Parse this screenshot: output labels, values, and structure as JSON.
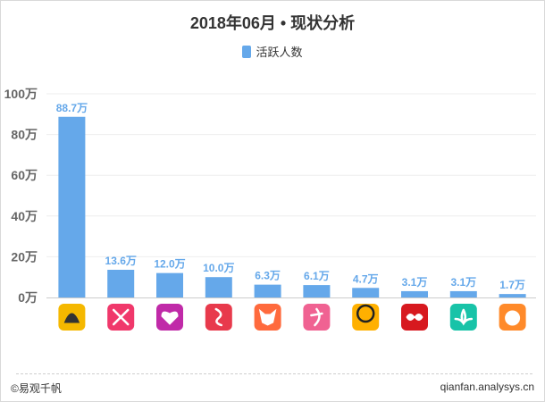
{
  "chart_data": {
    "type": "bar",
    "title": "2018年06月 • 现状分析",
    "categories": [
      "app-1",
      "app-2",
      "app-3",
      "app-4",
      "app-5",
      "app-6",
      "app-7",
      "app-8",
      "app-9",
      "app-10"
    ],
    "series": [
      {
        "name": "活跃人数",
        "color": "#65a8ea",
        "values": [
          88.7,
          13.6,
          12.0,
          10.0,
          6.3,
          6.1,
          4.7,
          3.1,
          3.1,
          1.7
        ]
      }
    ],
    "data_labels": [
      "88.7万",
      "13.6万",
      "12.0万",
      "10.0万",
      "6.3万",
      "6.1万",
      "4.7万",
      "3.1万",
      "3.1万",
      "1.7万"
    ],
    "ylim": [
      0,
      100
    ],
    "yticks": [
      0,
      20,
      40,
      60,
      80,
      100
    ],
    "ytick_labels": [
      "0万",
      "20万",
      "40万",
      "60万",
      "80万",
      "100万"
    ],
    "legend_position": "top-center",
    "grid": true
  },
  "app_icons": [
    {
      "name": "banana-icon",
      "bg": "#f5b800",
      "fg": "#333333"
    },
    {
      "name": "crossed-tools-icon",
      "bg": "#f0386b",
      "fg": "#ffffff"
    },
    {
      "name": "heart-icon",
      "bg": "#c02aa8",
      "fg": "#ffffff"
    },
    {
      "name": "figure-icon",
      "bg": "#e83a4c",
      "fg": "#ffffff"
    },
    {
      "name": "fox-icon",
      "bg": "#ff6a3d",
      "fg": "#ffffff"
    },
    {
      "name": "dancer-icon",
      "bg": "#f06292",
      "fg": "#ffffff"
    },
    {
      "name": "mascot-icon",
      "bg": "#ffb000",
      "fg": "#222222"
    },
    {
      "name": "infinity-heart-icon",
      "bg": "#d7191f",
      "fg": "#ffffff"
    },
    {
      "name": "lotus-icon",
      "bg": "#18c3a8",
      "fg": "#ffffff"
    },
    {
      "name": "baby-face-icon",
      "bg": "#ff8a2a",
      "fg": "#ffffff"
    }
  ],
  "footer": {
    "source": "©易观千帆",
    "site": "qianfan.analysys.cn"
  },
  "colors": {
    "label": "#65a8ea",
    "axis_text": "#666666",
    "grid": "#eeeeee"
  }
}
